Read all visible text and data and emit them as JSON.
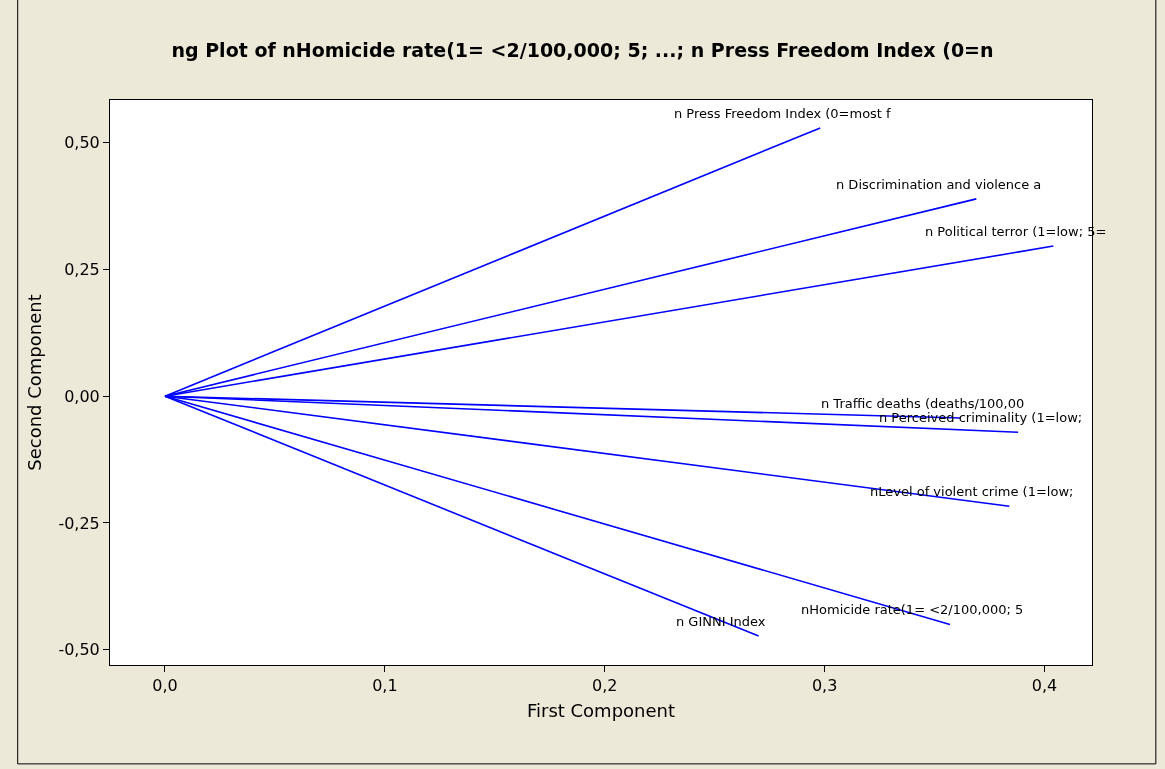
{
  "chart_data": {
    "type": "line",
    "title": "ng Plot of nHomicide rate(1= <2/100,000; 5; ...; n Press Freedom Index (0=n",
    "xlabel": "First Component",
    "ylabel": "Second Component",
    "xlim": [
      -0.025,
      0.4216
    ],
    "ylim": [
      -0.53,
      0.584
    ],
    "xticks": [
      {
        "value": 0,
        "label": "0,0"
      },
      {
        "value": 0.1,
        "label": "0,1"
      },
      {
        "value": 0.2,
        "label": "0,2"
      },
      {
        "value": 0.3,
        "label": "0,3"
      },
      {
        "value": 0.4,
        "label": "0,4"
      }
    ],
    "yticks": [
      {
        "value": -0.5,
        "label": "-0,50"
      },
      {
        "value": -0.25,
        "label": "-0,25"
      },
      {
        "value": 0,
        "label": "0,00"
      },
      {
        "value": 0.25,
        "label": "0,25"
      },
      {
        "value": 0.5,
        "label": "0,50"
      }
    ],
    "legend": false,
    "marker": "none",
    "line_style": "solid",
    "series": [
      {
        "name": "n Press Freedom Index (0=most f",
        "color": "#0000ff",
        "x": [
          0,
          0.298
        ],
        "values": [
          0,
          0.529
        ]
      },
      {
        "name": "n Discrimination and violence a",
        "color": "#0000ff",
        "x": [
          0,
          0.369
        ],
        "values": [
          0,
          0.389
        ]
      },
      {
        "name": "n Political terror (1=low; 5=",
        "color": "#0000ff",
        "x": [
          0,
          0.404
        ],
        "values": [
          0,
          0.296
        ]
      },
      {
        "name": "n Traffic deaths (deaths/100,00",
        "color": "#0000ff",
        "x": [
          0,
          0.362
        ],
        "values": [
          0,
          -0.043
        ]
      },
      {
        "name": "n Perceived criminality (1=low;",
        "color": "#0000ff",
        "x": [
          0,
          0.388
        ],
        "values": [
          0,
          -0.071
        ]
      },
      {
        "name": "nLevel of violent crime (1=low;",
        "color": "#0000ff",
        "x": [
          0,
          0.384
        ],
        "values": [
          0,
          -0.217
        ]
      },
      {
        "name": "nHomicide rate(1= <2/100,000; 5",
        "color": "#0000ff",
        "x": [
          0,
          0.357
        ],
        "values": [
          0,
          -0.45
        ]
      },
      {
        "name": "n GINNI Index",
        "color": "#0000ff",
        "x": [
          0,
          0.27
        ],
        "values": [
          0,
          -0.473
        ]
      }
    ]
  }
}
